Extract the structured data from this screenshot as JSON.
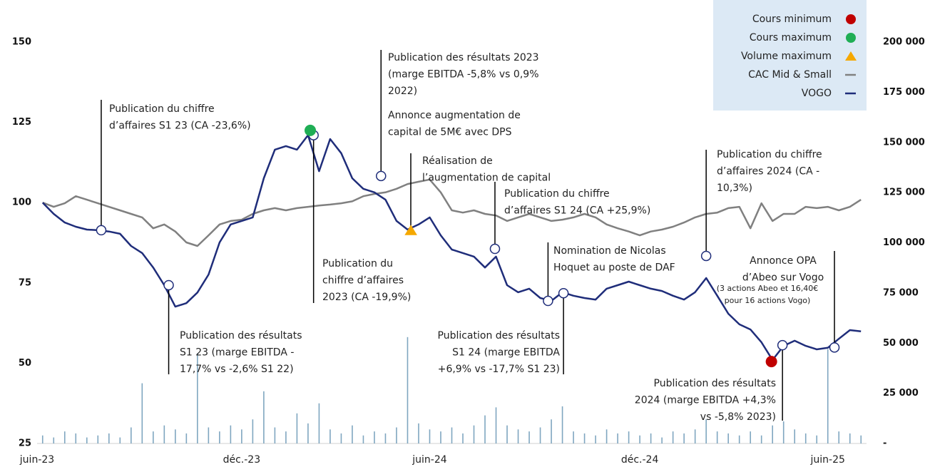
{
  "chart_data": {
    "type": "line",
    "xlim": [
      -0.5,
      74.5
    ],
    "xticks": [
      {
        "value": -0.5,
        "label": "juin-23"
      },
      {
        "value": 18,
        "label": "déc.-23"
      },
      {
        "value": 35,
        "label": "juin-24"
      },
      {
        "value": 54,
        "label": "déc.-24"
      },
      {
        "value": 71,
        "label": "juin-25"
      }
    ],
    "ylim": [
      25,
      150
    ],
    "yticks": [
      25,
      50,
      75,
      100,
      125,
      150
    ],
    "y2lim": [
      0,
      200000
    ],
    "y2ticks": [
      {
        "value": 0,
        "label": "-"
      },
      {
        "value": 25000,
        "label": "25 000"
      },
      {
        "value": 50000,
        "label": "50 000"
      },
      {
        "value": 75000,
        "label": "75 000"
      },
      {
        "value": 100000,
        "label": "100 000"
      },
      {
        "value": 125000,
        "label": "125 000"
      },
      {
        "value": 150000,
        "label": "150 000"
      },
      {
        "value": 175000,
        "label": "175 000"
      },
      {
        "value": 200000,
        "label": "200 000"
      }
    ],
    "series": [
      {
        "name": "VOGO",
        "color": "#1f2d7a",
        "type": "line",
        "values": [
          100,
          96.5,
          93.8,
          92.5,
          91.6,
          91.4,
          91,
          90.3,
          86.5,
          84.3,
          79.8,
          74.3,
          67.6,
          68.7,
          72,
          77.6,
          87.6,
          93.2,
          94.3,
          95.4,
          107.6,
          116.5,
          117.6,
          116.5,
          121,
          109.8,
          119.8,
          115.4,
          107.6,
          104.3,
          103.2,
          100.9,
          94.3,
          91.6,
          93.2,
          95.4,
          89.8,
          85.4,
          84.3,
          83.2,
          79.8,
          83.2,
          74.3,
          72.1,
          73.2,
          70.3,
          69.4,
          72.1,
          71,
          70.3,
          69.8,
          73.2,
          74.3,
          75.4,
          74.3,
          73.2,
          72.5,
          71,
          69.8,
          72.1,
          76.5,
          71,
          65.4,
          62.1,
          60.5,
          56.5,
          51,
          55.4,
          57,
          55.4,
          54.3,
          54.8,
          57.6,
          60.3,
          59.9
        ]
      },
      {
        "name": "CAC Mid & Small",
        "color": "#808080",
        "type": "line",
        "values": [
          100,
          98.7,
          99.8,
          102,
          100.9,
          99.8,
          98.7,
          97.6,
          96.5,
          95.4,
          92,
          93.2,
          91,
          87.6,
          86.5,
          89.8,
          93.2,
          94.3,
          94.7,
          96.5,
          97.6,
          98.3,
          97.6,
          98.3,
          98.7,
          99.1,
          99.4,
          99.8,
          100.4,
          102,
          102.7,
          103.2,
          104.3,
          105.8,
          106.5,
          107.2,
          103.2,
          97.6,
          96.9,
          97.6,
          96.5,
          96,
          94.3,
          95.4,
          96.5,
          95.4,
          94.3,
          94.7,
          95.4,
          96.5,
          95.4,
          93.2,
          92,
          91,
          89.8,
          91,
          91.6,
          92.5,
          93.8,
          95.4,
          96.5,
          96.9,
          98.3,
          98.7,
          92,
          99.8,
          94.3,
          96.5,
          96.5,
          98.7,
          98.3,
          98.7,
          97.6,
          98.7,
          100.9
        ]
      },
      {
        "color": "#7fa6c0",
        "type": "bar",
        "axis": "y2",
        "values": [
          4000,
          3000,
          6000,
          5000,
          3000,
          4000,
          5000,
          3000,
          8000,
          30000,
          6000,
          9000,
          7000,
          5000,
          45000,
          8000,
          6000,
          9000,
          7000,
          12000,
          26000,
          8000,
          6000,
          15000,
          10000,
          20000,
          7000,
          5000,
          9000,
          4000,
          6000,
          5000,
          8000,
          53000,
          10000,
          7000,
          6000,
          8000,
          5000,
          9000,
          14000,
          18000,
          9000,
          7000,
          6000,
          8000,
          12000,
          18500,
          6000,
          5000,
          4000,
          7000,
          5000,
          6000,
          4000,
          5000,
          3000,
          6000,
          5000,
          7000,
          12000,
          6000,
          5000,
          4000,
          6000,
          4000,
          9000,
          11000,
          7000,
          5000,
          4000,
          47000,
          6000,
          5000,
          4000
        ]
      }
    ],
    "markers": [
      {
        "name": "Cours minimum",
        "color": "#c00000",
        "shape": "circle",
        "x": 65.9,
        "y": 50.5
      },
      {
        "name": "Cours maximum",
        "color": "#1fae55",
        "shape": "circle",
        "x": 24.2,
        "y": 122.5
      },
      {
        "name": "Volume maximum",
        "color": "#f5a800",
        "shape": "triangle",
        "x": 33.3,
        "y": 91.3
      }
    ],
    "annotations": [
      {
        "lines": [
          "Publication du chiffre",
          "d’affaires S1 23 (CA -23,6%)"
        ],
        "x": 5.3,
        "y": 91.4
      },
      {
        "lines": [
          "Publication des résultats",
          "S1 23 (marge EBITDA -",
          "17,7% vs -2,6% S1 22)"
        ],
        "x": 11.4,
        "y": 74.3
      },
      {
        "lines": [
          "Publication du",
          "chiffre d’affaires",
          "2023 (CA -19,9%)"
        ],
        "x": 24.5,
        "y": 121
      },
      {
        "lines": [
          "Publication des résultats 2023",
          "(marge EBITDA -5,8% vs 0,9%",
          "2022)"
        ],
        "x": 30.6,
        "y": 108.3
      },
      {
        "lines": [
          "Annonce augmentation de",
          "capital de 5M€ avec DPS"
        ]
      },
      {
        "lines": [
          "Réalisation de",
          "l’augmentation de capital"
        ]
      },
      {
        "lines": [
          "Publication du chiffre",
          "d’affaires S1 24 (CA +25,9%)"
        ],
        "x": 40.9,
        "y": 85.6
      },
      {
        "lines": [
          "Publication des résultats",
          "S1 24 (marge EBITDA",
          "+6,9% vs -17,7% S1 23)"
        ],
        "x": 47.1,
        "y": 71.8
      },
      {
        "lines": [
          "Nomination de Nicolas",
          "Hoquet au poste de DAF"
        ],
        "x": 45.7,
        "y": 69.4
      },
      {
        "lines": [
          "Publication du chiffre",
          "d’affaires 2024 (CA -",
          "10,3%)"
        ],
        "x": 60.0,
        "y": 83.4
      },
      {
        "lines": [
          "Publication des résultats",
          "2024 (marge EBITDA +4,3%",
          "vs -5,8% 2023)"
        ],
        "x": 66.9,
        "y": 55.6
      },
      {
        "lines": [
          "Annonce OPA",
          "d’Abeo sur Vogo"
        ],
        "x": 71.6,
        "y": 54.9
      },
      {
        "lines": [
          "(3 actions Abeo et 16,40€",
          "pour 16 actions Vogo)"
        ]
      }
    ]
  }
}
